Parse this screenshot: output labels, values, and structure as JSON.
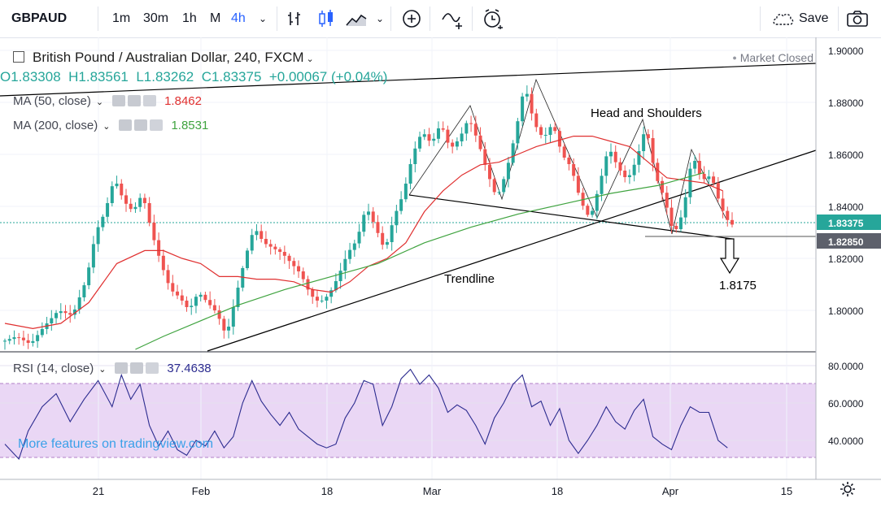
{
  "toolbar": {
    "symbol": "GBPAUD",
    "intervals": [
      "1m",
      "30m",
      "1h",
      "M",
      "4h"
    ],
    "active_interval": "4h",
    "save_label": "Save"
  },
  "legend": {
    "title": "British Pound / Australian Dollar, 240, FXCM",
    "market_status": "Market Closed",
    "ohlc": {
      "o": "O1.83308",
      "h": "H1.83561",
      "l": "L1.83262",
      "c": "C1.83375",
      "chg": "+0.00067 (+0.04%)"
    },
    "ma50": {
      "label": "MA (50, close)",
      "value": "1.8462"
    },
    "ma200": {
      "label": "MA (200, close)",
      "value": "1.8531"
    },
    "rsi": {
      "label": "RSI (14, close)",
      "value": "37.4638"
    }
  },
  "watermark": "More features on tradingview.com",
  "colors": {
    "up": "#26a69a",
    "down": "#ef5350",
    "ma50": "#e03030",
    "ma200": "#3fa33f",
    "rsi": "#2b2b8f",
    "rsi_band": "#ead7f5"
  },
  "chart_data": [
    {
      "type": "line",
      "title": "British Pound / Australian Dollar, 240, FXCM",
      "x_ticks": [
        "21",
        "Feb",
        "18",
        "Mar",
        "18",
        "Apr",
        "15"
      ],
      "y_ticks": [
        "1.90000",
        "1.88000",
        "1.86000",
        "1.84000",
        "1.82000",
        "1.80000"
      ],
      "ylim": [
        1.785,
        1.902
      ],
      "price_tags": {
        "last": "1.83375",
        "neckline": "1.82850"
      },
      "series": [
        {
          "name": "GBPAUD",
          "points": [
            [
              0,
              1.788
            ],
            [
              3,
              1.79
            ],
            [
              6,
              1.787
            ],
            [
              9,
              1.794
            ],
            [
              12,
              1.8
            ],
            [
              15,
              1.798
            ],
            [
              18,
              1.812
            ],
            [
              20,
              1.83
            ],
            [
              22,
              1.838
            ],
            [
              24,
              1.851
            ],
            [
              26,
              1.842
            ],
            [
              28,
              1.838
            ],
            [
              30,
              1.845
            ],
            [
              32,
              1.83
            ],
            [
              34,
              1.818
            ],
            [
              36,
              1.808
            ],
            [
              38,
              1.805
            ],
            [
              40,
              1.8
            ],
            [
              42,
              1.807
            ],
            [
              44,
              1.803
            ],
            [
              46,
              1.799
            ],
            [
              48,
              1.79
            ],
            [
              50,
              1.805
            ],
            [
              52,
              1.82
            ],
            [
              54,
              1.832
            ],
            [
              56,
              1.826
            ],
            [
              58,
              1.824
            ],
            [
              60,
              1.822
            ],
            [
              62,
              1.818
            ],
            [
              64,
              1.814
            ],
            [
              66,
              1.806
            ],
            [
              68,
              1.803
            ],
            [
              70,
              1.806
            ],
            [
              72,
              1.813
            ],
            [
              74,
              1.822
            ],
            [
              76,
              1.827
            ],
            [
              78,
              1.84
            ],
            [
              80,
              1.832
            ],
            [
              82,
              1.823
            ],
            [
              84,
              1.836
            ],
            [
              86,
              1.845
            ],
            [
              88,
              1.86
            ],
            [
              90,
              1.869
            ],
            [
              92,
              1.864
            ],
            [
              94,
              1.872
            ],
            [
              96,
              1.862
            ],
            [
              98,
              1.866
            ],
            [
              100,
              1.874
            ],
            [
              102,
              1.865
            ],
            [
              104,
              1.853
            ],
            [
              106,
              1.843
            ],
            [
              108,
              1.853
            ],
            [
              110,
              1.868
            ],
            [
              112,
              1.887
            ],
            [
              114,
              1.872
            ],
            [
              116,
              1.866
            ],
            [
              118,
              1.872
            ],
            [
              120,
              1.86
            ],
            [
              122,
              1.855
            ],
            [
              124,
              1.842
            ],
            [
              126,
              1.835
            ],
            [
              128,
              1.848
            ],
            [
              130,
              1.863
            ],
            [
              132,
              1.855
            ],
            [
              134,
              1.85
            ],
            [
              136,
              1.858
            ],
            [
              138,
              1.871
            ],
            [
              140,
              1.852
            ],
            [
              142,
              1.843
            ],
            [
              144,
              1.829
            ],
            [
              146,
              1.838
            ],
            [
              148,
              1.86
            ],
            [
              150,
              1.85
            ],
            [
              152,
              1.852
            ],
            [
              154,
              1.84
            ],
            [
              156,
              1.833
            ]
          ]
        },
        {
          "name": "MA (50, close)",
          "points": [
            [
              0,
              1.795
            ],
            [
              6,
              1.793
            ],
            [
              12,
              1.795
            ],
            [
              18,
              1.803
            ],
            [
              24,
              1.818
            ],
            [
              30,
              1.823
            ],
            [
              34,
              1.823
            ],
            [
              38,
              1.82
            ],
            [
              42,
              1.818
            ],
            [
              46,
              1.813
            ],
            [
              50,
              1.813
            ],
            [
              54,
              1.812
            ],
            [
              58,
              1.812
            ],
            [
              62,
              1.811
            ],
            [
              66,
              1.808
            ],
            [
              70,
              1.807
            ],
            [
              74,
              1.811
            ],
            [
              78,
              1.817
            ],
            [
              82,
              1.82
            ],
            [
              86,
              1.826
            ],
            [
              90,
              1.838
            ],
            [
              94,
              1.846
            ],
            [
              98,
              1.852
            ],
            [
              102,
              1.856
            ],
            [
              106,
              1.857
            ],
            [
              110,
              1.86
            ],
            [
              114,
              1.863
            ],
            [
              118,
              1.865
            ],
            [
              122,
              1.867
            ],
            [
              126,
              1.867
            ],
            [
              130,
              1.865
            ],
            [
              134,
              1.863
            ],
            [
              138,
              1.857
            ],
            [
              142,
              1.851
            ],
            [
              146,
              1.85
            ],
            [
              150,
              1.849
            ],
            [
              154,
              1.846
            ]
          ]
        },
        {
          "name": "MA (200, close)",
          "points": [
            [
              28,
              1.785
            ],
            [
              34,
              1.79
            ],
            [
              42,
              1.796
            ],
            [
              50,
              1.802
            ],
            [
              60,
              1.808
            ],
            [
              70,
              1.813
            ],
            [
              80,
              1.818
            ],
            [
              90,
              1.826
            ],
            [
              100,
              1.832
            ],
            [
              110,
              1.837
            ],
            [
              120,
              1.841
            ],
            [
              130,
              1.845
            ],
            [
              140,
              1.848
            ],
            [
              146,
              1.851
            ],
            [
              150,
              1.853
            ]
          ]
        }
      ],
      "annotations": [
        {
          "text": "Head and Shoulders"
        },
        {
          "text": "Trendline"
        },
        {
          "text": "1.8175"
        }
      ]
    },
    {
      "type": "line",
      "title": "RSI (14, close)",
      "y_ticks": [
        "80.0000",
        "60.0000",
        "40.0000"
      ],
      "ylim": [
        22,
        83
      ],
      "band": [
        30,
        70
      ],
      "series": [
        {
          "name": "RSI (14, close)",
          "points": [
            [
              0,
              38
            ],
            [
              3,
              30
            ],
            [
              5,
              45
            ],
            [
              8,
              58
            ],
            [
              11,
              65
            ],
            [
              14,
              50
            ],
            [
              17,
              62
            ],
            [
              20,
              72
            ],
            [
              23,
              58
            ],
            [
              25,
              75
            ],
            [
              27,
              62
            ],
            [
              29,
              70
            ],
            [
              31,
              48
            ],
            [
              33,
              37
            ],
            [
              35,
              45
            ],
            [
              37,
              35
            ],
            [
              39,
              32
            ],
            [
              41,
              40
            ],
            [
              43,
              37
            ],
            [
              45,
              45
            ],
            [
              47,
              36
            ],
            [
              49,
              42
            ],
            [
              51,
              60
            ],
            [
              53,
              72
            ],
            [
              55,
              61
            ],
            [
              57,
              54
            ],
            [
              59,
              48
            ],
            [
              61,
              55
            ],
            [
              63,
              46
            ],
            [
              65,
              42
            ],
            [
              67,
              38
            ],
            [
              69,
              36
            ],
            [
              71,
              38
            ],
            [
              73,
              52
            ],
            [
              75,
              60
            ],
            [
              77,
              72
            ],
            [
              79,
              70
            ],
            [
              81,
              48
            ],
            [
              83,
              58
            ],
            [
              85,
              73
            ],
            [
              87,
              78
            ],
            [
              89,
              70
            ],
            [
              91,
              75
            ],
            [
              93,
              68
            ],
            [
              95,
              55
            ],
            [
              97,
              59
            ],
            [
              99,
              56
            ],
            [
              101,
              48
            ],
            [
              103,
              38
            ],
            [
              105,
              52
            ],
            [
              107,
              60
            ],
            [
              109,
              70
            ],
            [
              111,
              75
            ],
            [
              113,
              58
            ],
            [
              115,
              61
            ],
            [
              117,
              48
            ],
            [
              119,
              57
            ],
            [
              121,
              40
            ],
            [
              123,
              33
            ],
            [
              125,
              40
            ],
            [
              127,
              48
            ],
            [
              129,
              58
            ],
            [
              131,
              50
            ],
            [
              133,
              46
            ],
            [
              135,
              56
            ],
            [
              137,
              62
            ],
            [
              139,
              42
            ],
            [
              141,
              38
            ],
            [
              143,
              35
            ],
            [
              145,
              48
            ],
            [
              147,
              58
            ],
            [
              149,
              55
            ],
            [
              151,
              55
            ],
            [
              153,
              40
            ],
            [
              155,
              36
            ]
          ]
        }
      ]
    }
  ]
}
